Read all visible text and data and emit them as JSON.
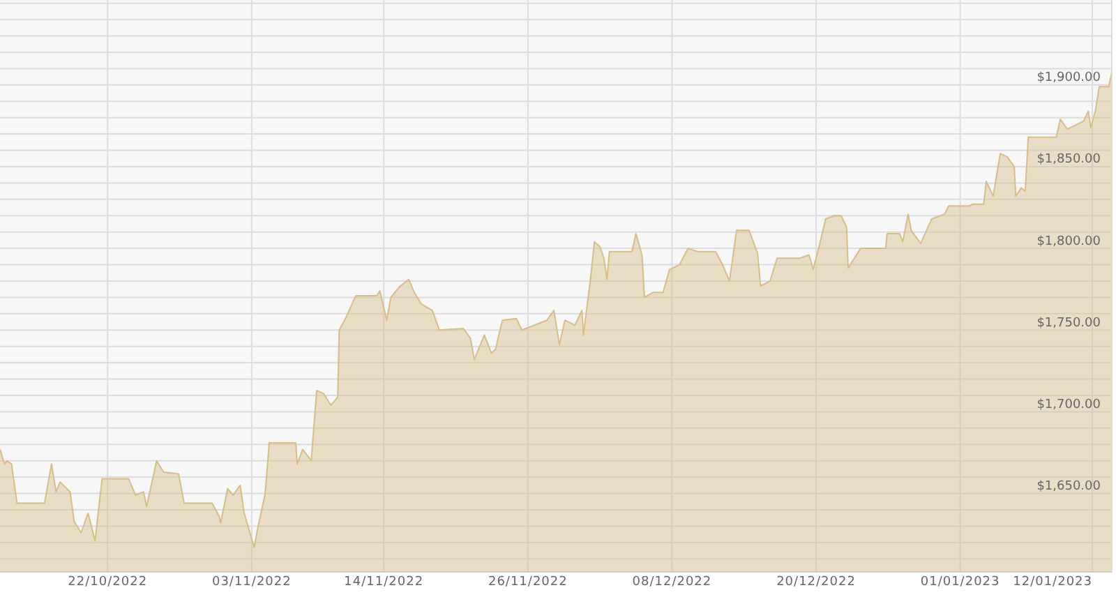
{
  "chart_data": {
    "type": "area",
    "grid": true,
    "marker": "none",
    "line_style": "solid",
    "legend": false,
    "xlim": [
      "2022-10-13T01:00",
      "2023-01-13T15:00"
    ],
    "xticks": [
      {
        "value": "2022-10-22",
        "label": "22/10/2022"
      },
      {
        "value": "2022-11-03",
        "label": "03/11/2022"
      },
      {
        "value": "2022-11-14",
        "label": "14/11/2022"
      },
      {
        "value": "2022-11-26",
        "label": "26/11/2022"
      },
      {
        "value": "2022-12-08",
        "label": "08/12/2022"
      },
      {
        "value": "2022-12-20",
        "label": "20/12/2022"
      },
      {
        "value": "2023-01-01",
        "label": "01/01/2023"
      },
      {
        "value": "2023-01-12",
        "label": "12/01/2023"
      }
    ],
    "ylim": [
      1602,
      1952
    ],
    "yticks": [
      {
        "value": 1610,
        "label": null
      },
      {
        "value": 1620,
        "label": null
      },
      {
        "value": 1630,
        "label": null
      },
      {
        "value": 1640,
        "label": null
      },
      {
        "value": 1650,
        "label": "$1,650.00"
      },
      {
        "value": 1660,
        "label": null
      },
      {
        "value": 1670,
        "label": null
      },
      {
        "value": 1680,
        "label": null
      },
      {
        "value": 1690,
        "label": null
      },
      {
        "value": 1700,
        "label": "$1,700.00"
      },
      {
        "value": 1710,
        "label": null
      },
      {
        "value": 1720,
        "label": null
      },
      {
        "value": 1730,
        "label": null
      },
      {
        "value": 1740,
        "label": null
      },
      {
        "value": 1750,
        "label": "$1,750.00"
      },
      {
        "value": 1760,
        "label": null
      },
      {
        "value": 1770,
        "label": null
      },
      {
        "value": 1780,
        "label": null
      },
      {
        "value": 1790,
        "label": null
      },
      {
        "value": 1800,
        "label": "$1,800.00"
      },
      {
        "value": 1810,
        "label": null
      },
      {
        "value": 1820,
        "label": null
      },
      {
        "value": 1830,
        "label": null
      },
      {
        "value": 1840,
        "label": null
      },
      {
        "value": 1850,
        "label": "$1,850.00"
      },
      {
        "value": 1860,
        "label": null
      },
      {
        "value": 1870,
        "label": null
      },
      {
        "value": 1880,
        "label": null
      },
      {
        "value": 1890,
        "label": null
      },
      {
        "value": 1900,
        "label": "$1,900.00"
      },
      {
        "value": 1910,
        "label": null
      },
      {
        "value": 1920,
        "label": null
      },
      {
        "value": 1930,
        "label": null
      },
      {
        "value": 1940,
        "label": null
      },
      {
        "value": 1950,
        "label": null
      }
    ],
    "x": [
      "2022-10-13T01:00",
      "2022-10-13T10:00",
      "2022-10-13T15:00",
      "2022-10-14T00:00",
      "2022-10-14T11:00",
      "2022-10-16T18:00",
      "2022-10-17T08:00",
      "2022-10-17T17:00",
      "2022-10-18T01:00",
      "2022-10-18T21:00",
      "2022-10-19T05:00",
      "2022-10-19T19:00",
      "2022-10-20T09:00",
      "2022-10-20T23:00",
      "2022-10-21T13:00",
      "2022-10-23T18:00",
      "2022-10-24T08:00",
      "2022-10-25T00:00",
      "2022-10-25T06:00",
      "2022-10-26T02:00",
      "2022-10-26T16:00",
      "2022-10-27T22:00",
      "2022-10-28T09:00",
      "2022-10-30T17:00",
      "2022-10-31T07:00",
      "2022-10-31T10:00",
      "2022-11-01T00:00",
      "2022-11-01T11:00",
      "2022-11-02T01:00",
      "2022-11-02T09:00",
      "2022-11-03T05:00",
      "2022-11-03T13:00",
      "2022-11-04T03:00",
      "2022-11-04T11:00",
      "2022-11-06T16:00",
      "2022-11-06T19:00",
      "2022-11-07T06:00",
      "2022-11-07T23:00",
      "2022-11-08T10:00",
      "2022-11-09T00:00",
      "2022-11-09T14:00",
      "2022-11-10T04:00",
      "2022-11-10T07:00",
      "2022-11-10T21:00",
      "2022-11-11T16:00",
      "2022-11-13T10:00",
      "2022-11-13T16:00",
      "2022-11-14T06:00",
      "2022-11-14T14:00",
      "2022-11-15T09:00",
      "2022-11-16T02:00",
      "2022-11-16T13:00",
      "2022-11-17T03:00",
      "2022-11-18T01:00",
      "2022-11-18T15:00",
      "2022-11-20T15:00",
      "2022-11-21T05:00",
      "2022-11-21T13:00",
      "2022-11-22T09:00",
      "2022-11-22T23:00",
      "2022-11-23T07:00",
      "2022-11-23T21:00",
      "2022-11-25T01:00",
      "2022-11-25T12:00",
      "2022-11-27T14:00",
      "2022-11-28T04:00",
      "2022-11-28T15:00",
      "2022-11-29T02:00",
      "2022-11-29T22:00",
      "2022-11-30T12:00",
      "2022-11-30T15:00",
      "2022-12-01T05:00",
      "2022-12-01T13:00",
      "2022-12-02T00:00",
      "2022-12-02T08:00",
      "2022-12-02T14:00",
      "2022-12-02T19:00",
      "2022-12-04T16:00",
      "2022-12-05T00:00",
      "2022-12-05T12:00",
      "2022-12-05T17:00",
      "2022-12-06T10:00",
      "2022-12-07T06:00",
      "2022-12-07T19:00",
      "2022-12-08T15:00",
      "2022-12-09T08:00",
      "2022-12-10T03:00",
      "2022-12-11T15:00",
      "2022-12-12T05:00",
      "2022-12-12T19:00",
      "2022-12-13T09:00",
      "2022-12-14T10:00",
      "2022-12-15T03:00",
      "2022-12-15T09:00",
      "2022-12-16T04:00",
      "2022-12-16T18:00",
      "2022-12-18T15:00",
      "2022-12-19T10:00",
      "2022-12-19T18:00",
      "2022-12-20T06:00",
      "2022-12-20T19:00",
      "2022-12-21T12:00",
      "2022-12-22T02:00",
      "2022-12-22T13:00",
      "2022-12-22T16:00",
      "2022-12-23T17:00",
      "2022-12-25T19:00",
      "2022-12-25T22:00",
      "2022-12-26T23:00",
      "2022-12-27T05:00",
      "2022-12-27T16:00",
      "2022-12-27T22:00",
      "2022-12-28T17:00",
      "2022-12-29T15:00",
      "2022-12-30T17:00",
      "2022-12-31T01:00",
      "2023-01-01T19:00",
      "2023-01-02T00:00",
      "2023-01-02T23:00",
      "2023-01-03T04:00",
      "2023-01-03T18:00",
      "2023-01-04T08:00",
      "2023-01-04T22:00",
      "2023-01-05T12:00",
      "2023-01-05T15:00",
      "2023-01-06T02:00",
      "2023-01-06T10:00",
      "2023-01-06T16:00",
      "2023-01-09T00:00",
      "2023-01-09T08:00",
      "2023-01-09T22:00",
      "2023-01-10T12:00",
      "2023-01-11T07:00",
      "2023-01-11T16:00",
      "2023-01-11T21:00",
      "2023-01-12T06:00",
      "2023-01-12T14:00",
      "2023-01-13T09:00",
      "2023-01-13T15:00"
    ],
    "series": [
      {
        "color": "#d8bd88",
        "values": [
          1677,
          1668,
          1670,
          1668,
          1644,
          1644,
          1668,
          1651,
          1657,
          1651,
          1633,
          1626,
          1638,
          1621,
          1659,
          1659,
          1649,
          1651,
          1642,
          1670,
          1663,
          1662,
          1644,
          1644,
          1636,
          1632,
          1653,
          1649,
          1655,
          1638,
          1617,
          1630,
          1650,
          1681,
          1681,
          1668,
          1677,
          1670,
          1713,
          1711,
          1704,
          1709,
          1750,
          1758,
          1771,
          1771,
          1774,
          1756,
          1770,
          1777,
          1781,
          1773,
          1766,
          1762,
          1750,
          1751,
          1745,
          1732,
          1747,
          1736,
          1738,
          1756,
          1757,
          1750,
          1756,
          1762,
          1741,
          1756,
          1753,
          1762,
          1747,
          1781,
          1804,
          1801,
          1794,
          1781,
          1798,
          1798,
          1809,
          1796,
          1770,
          1773,
          1773,
          1787,
          1790,
          1800,
          1798,
          1798,
          1790,
          1780,
          1811,
          1811,
          1797,
          1777,
          1780,
          1794,
          1794,
          1796,
          1787,
          1801,
          1818,
          1820,
          1820,
          1813,
          1788,
          1800,
          1800,
          1809,
          1809,
          1804,
          1821,
          1811,
          1803,
          1818,
          1821,
          1826,
          1826,
          1827,
          1827,
          1841,
          1832,
          1858,
          1856,
          1850,
          1832,
          1837,
          1835,
          1868,
          1868,
          1879,
          1873,
          1875,
          1878,
          1884,
          1874,
          1884,
          1899,
          1899,
          1908
        ]
      }
    ]
  }
}
